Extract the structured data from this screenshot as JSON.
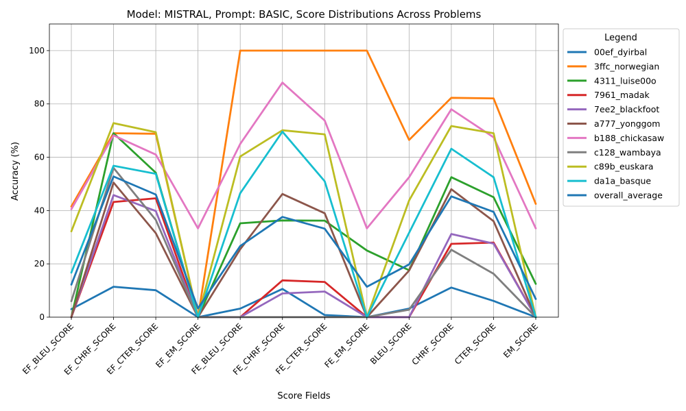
{
  "chart_data": {
    "type": "line",
    "title": "Model: MISTRAL, Prompt: BASIC, Score Distributions Across Problems",
    "xlabel": "Score Fields",
    "ylabel": "Accuracy (%)",
    "ylim": [
      0,
      110
    ],
    "yticks": [
      0,
      20,
      40,
      60,
      80,
      100
    ],
    "grid": true,
    "legend_title": "Legend",
    "legend_position": "outside right, top",
    "categories": [
      "EF_BLEU_SCORE",
      "EF_CHRF_SCORE",
      "EF_CTER_SCORE",
      "EF_EM_SCORE",
      "FE_BLEU_SCORE",
      "FE_CHRF_SCORE",
      "FE_CTER_SCORE",
      "FE_EM_SCORE",
      "BLEU_SCORE",
      "CHRF_SCORE",
      "CTER_SCORE",
      "EM_SCORE"
    ],
    "series": [
      {
        "name": "00ef_dyirbal",
        "color": "#1f77b4",
        "values": [
          3,
          11.4,
          10.1,
          0,
          3.2,
          10.6,
          0.8,
          0,
          3.2,
          11.1,
          6.1,
          0
        ]
      },
      {
        "name": "3ffc_norwegian",
        "color": "#ff7f0e",
        "values": [
          41.5,
          69,
          68.8,
          0,
          100,
          100,
          100,
          100,
          66.5,
          82.3,
          82.1,
          42.5
        ]
      },
      {
        "name": "4311_luise00o",
        "color": "#2ca02c",
        "values": [
          0,
          69,
          54.2,
          0,
          35.2,
          36.3,
          36.2,
          25,
          17.6,
          52.5,
          45,
          12.5
        ]
      },
      {
        "name": "7961_madak",
        "color": "#d62728",
        "values": [
          0,
          43.2,
          44.6,
          0,
          0,
          13.8,
          13.2,
          0,
          0,
          27.5,
          28,
          0
        ]
      },
      {
        "name": "7ee2_blackfoot",
        "color": "#9467bd",
        "values": [
          0,
          45.8,
          39.8,
          0,
          0,
          8.9,
          9.6,
          0,
          0,
          31.2,
          27.6,
          0
        ]
      },
      {
        "name": "a777_yonggom",
        "color": "#8c564b",
        "values": [
          0,
          50.5,
          31.5,
          0,
          25.5,
          46.2,
          39,
          0,
          17.5,
          48,
          36,
          0
        ]
      },
      {
        "name": "b188_chickasaw",
        "color": "#e377c2",
        "values": [
          40.5,
          68.2,
          61,
          33.3,
          65,
          88,
          73.8,
          33.3,
          52.5,
          78,
          67.5,
          33.3
        ]
      },
      {
        "name": "c128_wambaya",
        "color": "#7f7f7f",
        "values": [
          6,
          56,
          36.5,
          0,
          0,
          0,
          0,
          0,
          2.8,
          25.3,
          16.3,
          0
        ]
      },
      {
        "name": "c89b_euskara",
        "color": "#bcbd22",
        "values": [
          32.2,
          72.8,
          69.4,
          0,
          60.3,
          70.1,
          68.6,
          0,
          43.8,
          71.7,
          69,
          0
        ]
      },
      {
        "name": "da1a_basque",
        "color": "#17becf",
        "values": [
          16.7,
          56.8,
          53.8,
          0,
          46.5,
          69.6,
          51,
          0,
          31.7,
          63.2,
          52.5,
          0
        ]
      },
      {
        "name": "overall_average",
        "color": "#1f77b4",
        "values": [
          12.2,
          52.8,
          46,
          3.3,
          26.7,
          37.6,
          33.2,
          11.4,
          19.8,
          45.3,
          39.5,
          6.8
        ]
      }
    ]
  }
}
